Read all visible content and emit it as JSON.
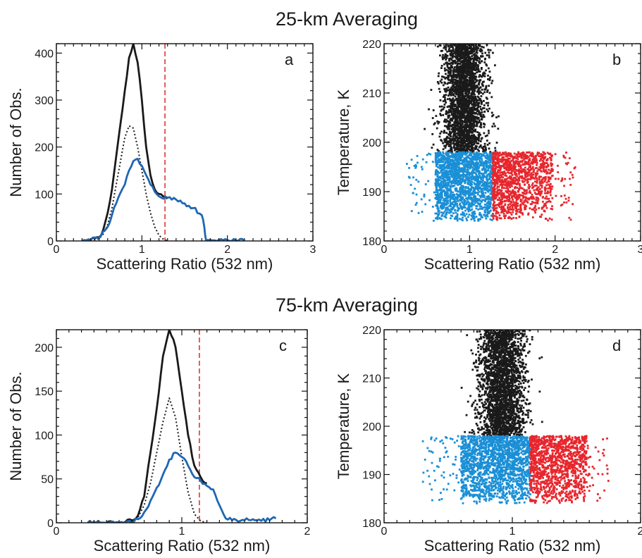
{
  "titles": {
    "top": "25-km Averaging",
    "bottom": "75-km Averaging"
  },
  "colors": {
    "total": "#1a1a1a",
    "ice": "#1f67b3",
    "dotted": "#1a1a1a",
    "threshold": "#e0262b",
    "warm": "#1a1a1a",
    "cold_low": "#1a8fd6",
    "cold_high": "#e7262d"
  },
  "chart_data": [
    {
      "panel": "a",
      "type": "line",
      "xlabel": "Scattering Ratio (532 nm)",
      "ylabel": "Number of Obs.",
      "xlim": [
        0,
        3
      ],
      "ylim": [
        0,
        420
      ],
      "xticks": [
        0,
        1,
        2,
        3
      ],
      "yticks": [
        0,
        100,
        200,
        300,
        400
      ],
      "threshold_x": 1.27,
      "series": [
        {
          "style": "solid-black",
          "x": [
            0.3,
            0.4,
            0.5,
            0.55,
            0.6,
            0.65,
            0.7,
            0.75,
            0.8,
            0.85,
            0.9,
            0.95,
            1.0,
            1.05,
            1.1,
            1.15,
            1.2,
            1.25,
            1.3
          ],
          "values": [
            0,
            2,
            8,
            25,
            60,
            110,
            180,
            250,
            320,
            390,
            420,
            380,
            300,
            200,
            140,
            110,
            100,
            95,
            90
          ]
        },
        {
          "style": "dotted-black",
          "x": [
            0.4,
            0.5,
            0.55,
            0.6,
            0.65,
            0.7,
            0.75,
            0.8,
            0.85,
            0.9,
            0.95,
            1.0,
            1.05,
            1.1,
            1.15,
            1.2,
            1.25,
            1.3
          ],
          "values": [
            0,
            5,
            15,
            35,
            70,
            120,
            170,
            220,
            245,
            240,
            200,
            150,
            100,
            60,
            30,
            12,
            4,
            0
          ]
        },
        {
          "style": "solid-blue",
          "x": [
            0.3,
            0.4,
            0.5,
            0.6,
            0.7,
            0.8,
            0.85,
            0.9,
            0.95,
            1.0,
            1.05,
            1.1,
            1.15,
            1.2,
            1.25,
            1.3,
            1.4,
            1.5,
            1.6,
            1.7,
            1.73,
            1.75,
            1.8,
            1.9,
            2.0,
            2.1,
            2.2
          ],
          "values": [
            0,
            2,
            6,
            30,
            80,
            120,
            150,
            170,
            175,
            160,
            140,
            120,
            105,
            95,
            90,
            92,
            88,
            80,
            70,
            55,
            30,
            2,
            2,
            2,
            2,
            1,
            0
          ]
        }
      ]
    },
    {
      "panel": "b",
      "type": "scatter",
      "xlabel": "Scattering Ratio (532 nm)",
      "ylabel": "Temperature, K",
      "xlim": [
        0,
        3
      ],
      "ylim": [
        180,
        220
      ],
      "xticks": [
        0,
        1,
        2,
        3
      ],
      "yticks": [
        180,
        190,
        200,
        210,
        220
      ],
      "threshold_x": 1.27,
      "threshold_t": 198,
      "warm": {
        "x_center": 0.93,
        "x_spread": 0.3,
        "t_range": [
          198,
          222
        ]
      },
      "cold": {
        "x_range": [
          0.25,
          2.25
        ],
        "t_range": [
          184,
          198
        ]
      }
    },
    {
      "panel": "c",
      "type": "line",
      "xlabel": "Scattering Ratio (532 nm)",
      "ylabel": "Number of Obs.",
      "xlim": [
        0,
        2
      ],
      "ylim": [
        0,
        220
      ],
      "xticks": [
        0,
        1,
        2
      ],
      "yticks": [
        0,
        50,
        100,
        150,
        200
      ],
      "threshold_x": 1.14,
      "series": [
        {
          "style": "solid-black",
          "x": [
            0.25,
            0.4,
            0.5,
            0.55,
            0.6,
            0.65,
            0.7,
            0.75,
            0.8,
            0.85,
            0.9,
            0.95,
            1.0,
            1.05,
            1.1,
            1.15,
            1.2
          ],
          "values": [
            0,
            0,
            0,
            1,
            3,
            8,
            30,
            80,
            130,
            190,
            220,
            200,
            150,
            100,
            65,
            52,
            45
          ]
        },
        {
          "style": "dotted-black",
          "x": [
            0.55,
            0.6,
            0.65,
            0.7,
            0.75,
            0.8,
            0.85,
            0.9,
            0.95,
            1.0,
            1.05,
            1.1,
            1.15,
            1.2
          ],
          "values": [
            0,
            2,
            6,
            20,
            45,
            80,
            115,
            142,
            120,
            75,
            35,
            10,
            2,
            0
          ]
        },
        {
          "style": "solid-blue",
          "x": [
            0.25,
            0.5,
            0.6,
            0.65,
            0.7,
            0.75,
            0.8,
            0.85,
            0.9,
            0.95,
            1.0,
            1.05,
            1.1,
            1.15,
            1.2,
            1.25,
            1.3,
            1.35,
            1.4,
            1.5,
            1.6,
            1.7,
            1.75
          ],
          "values": [
            0,
            0,
            1,
            4,
            12,
            25,
            40,
            55,
            72,
            80,
            75,
            65,
            52,
            48,
            42,
            38,
            20,
            5,
            3,
            3,
            3,
            3,
            5
          ]
        }
      ]
    },
    {
      "panel": "d",
      "type": "scatter",
      "xlabel": "Scattering Ratio (532 nm)",
      "ylabel": "Temperature, K",
      "xlim": [
        0,
        2
      ],
      "ylim": [
        180,
        220
      ],
      "xticks": [
        0,
        1,
        2
      ],
      "yticks": [
        180,
        190,
        200,
        210,
        220
      ],
      "threshold_x": 1.14,
      "threshold_t": 198,
      "warm": {
        "x_center": 0.92,
        "x_spread": 0.22,
        "t_range": [
          198,
          222
        ]
      },
      "cold": {
        "x_range": [
          0.3,
          1.75
        ],
        "t_range": [
          184,
          198
        ]
      }
    }
  ]
}
